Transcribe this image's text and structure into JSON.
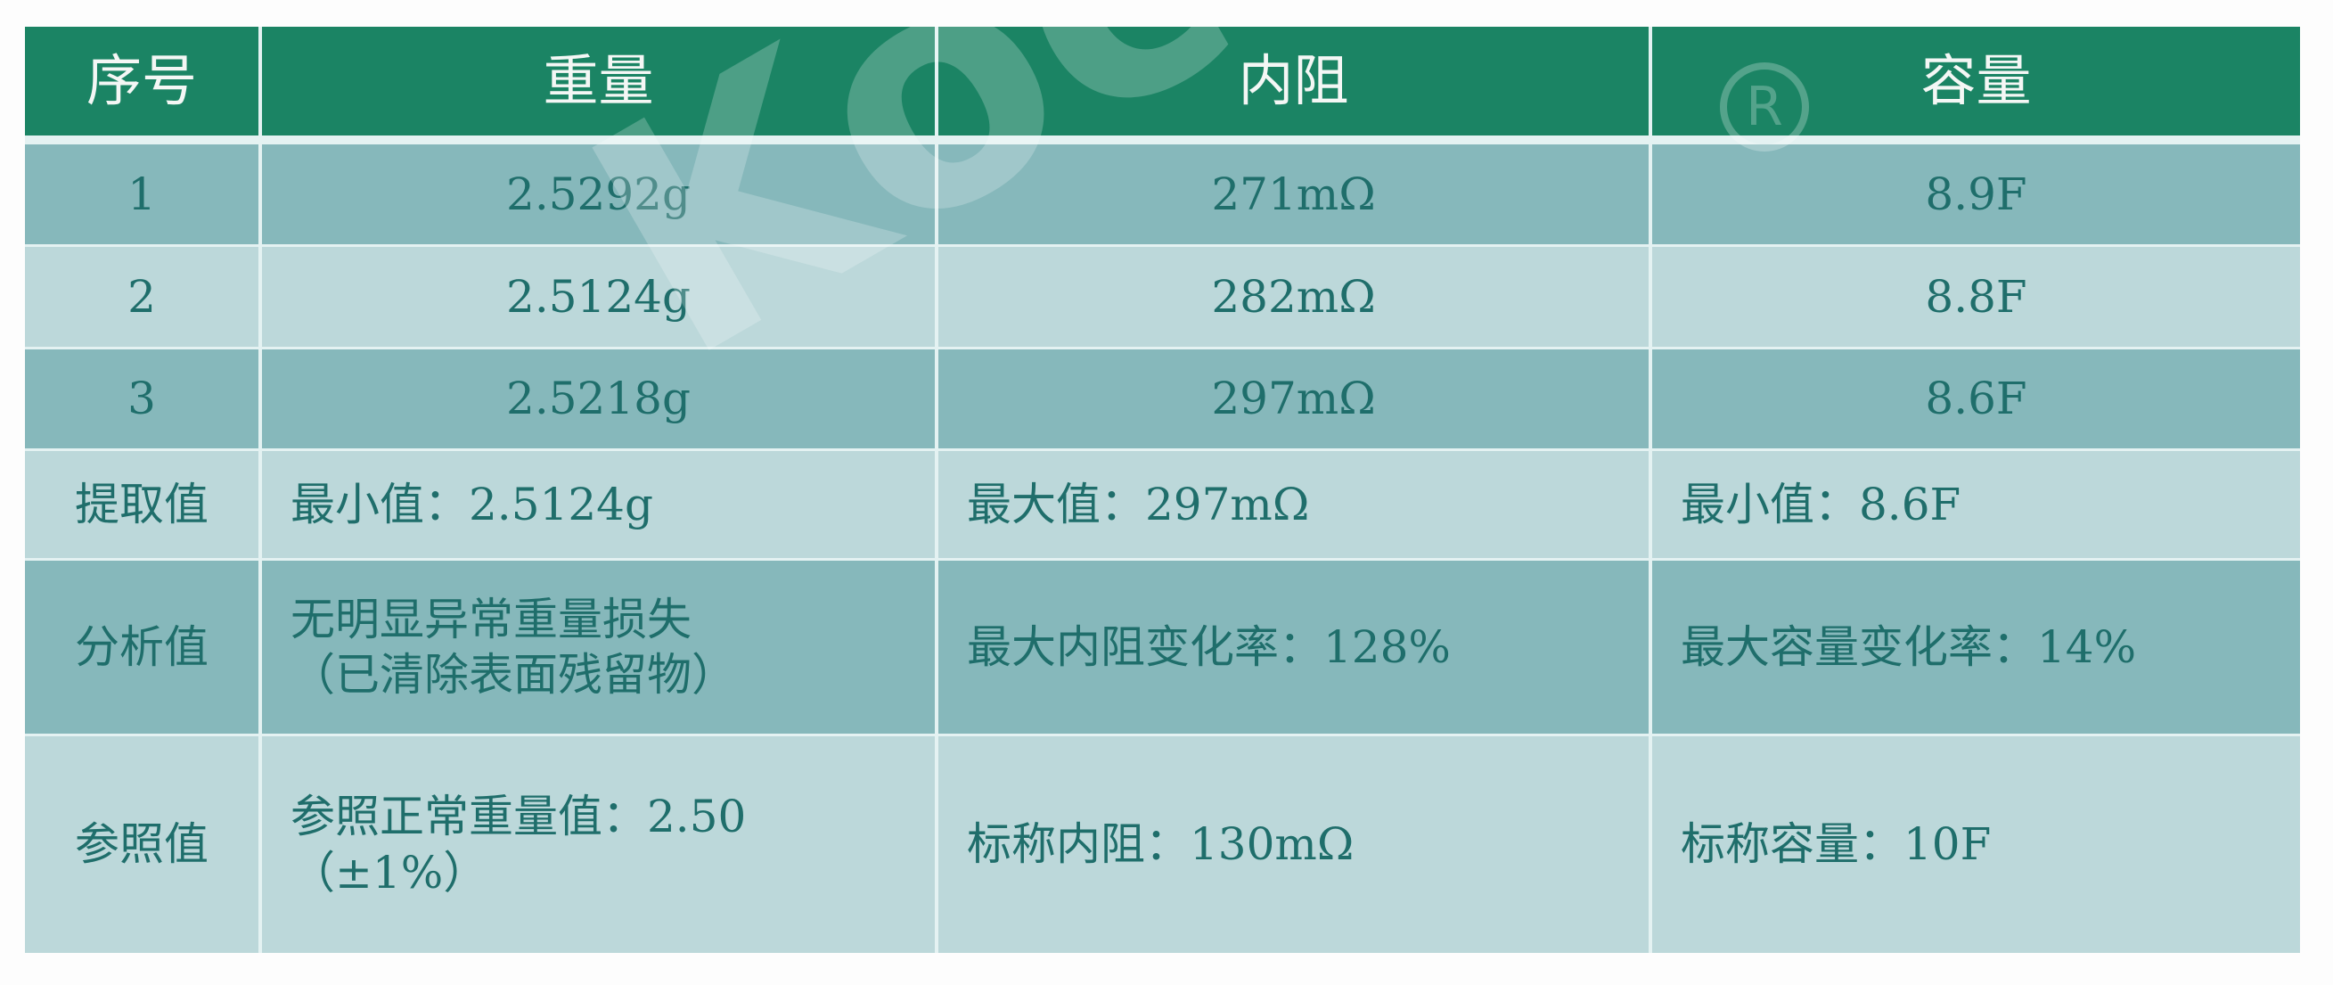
{
  "table": {
    "headers": [
      "序号",
      "重量",
      "内阻",
      "容量"
    ],
    "rows": [
      [
        "1",
        "2.5292g",
        "271mΩ",
        "8.9F"
      ],
      [
        "2",
        "2.5124g",
        "282mΩ",
        "8.8F"
      ],
      [
        "3",
        "2.5218g",
        "297mΩ",
        "8.6F"
      ],
      [
        "提取值",
        "最小值：2.5124g",
        "最大值：297mΩ",
        "最小值：8.6F"
      ],
      [
        "分析值",
        "无明显异常重量损失\n（已清除表面残留物）",
        "最大内阻变化率：128%",
        "最大容量变化率：14%"
      ],
      [
        "参照值",
        "参照正常重量值：2.50\n（±1%）",
        "标称内阻：130mΩ",
        "标称容量：10F"
      ]
    ]
  },
  "colors": {
    "header": "#1b8464",
    "row_dark": "#86b8bb",
    "row_light": "#bcd8da",
    "text": "#1f6e6b"
  },
  "watermark": {
    "text": "Kocap",
    "mark": "®"
  }
}
